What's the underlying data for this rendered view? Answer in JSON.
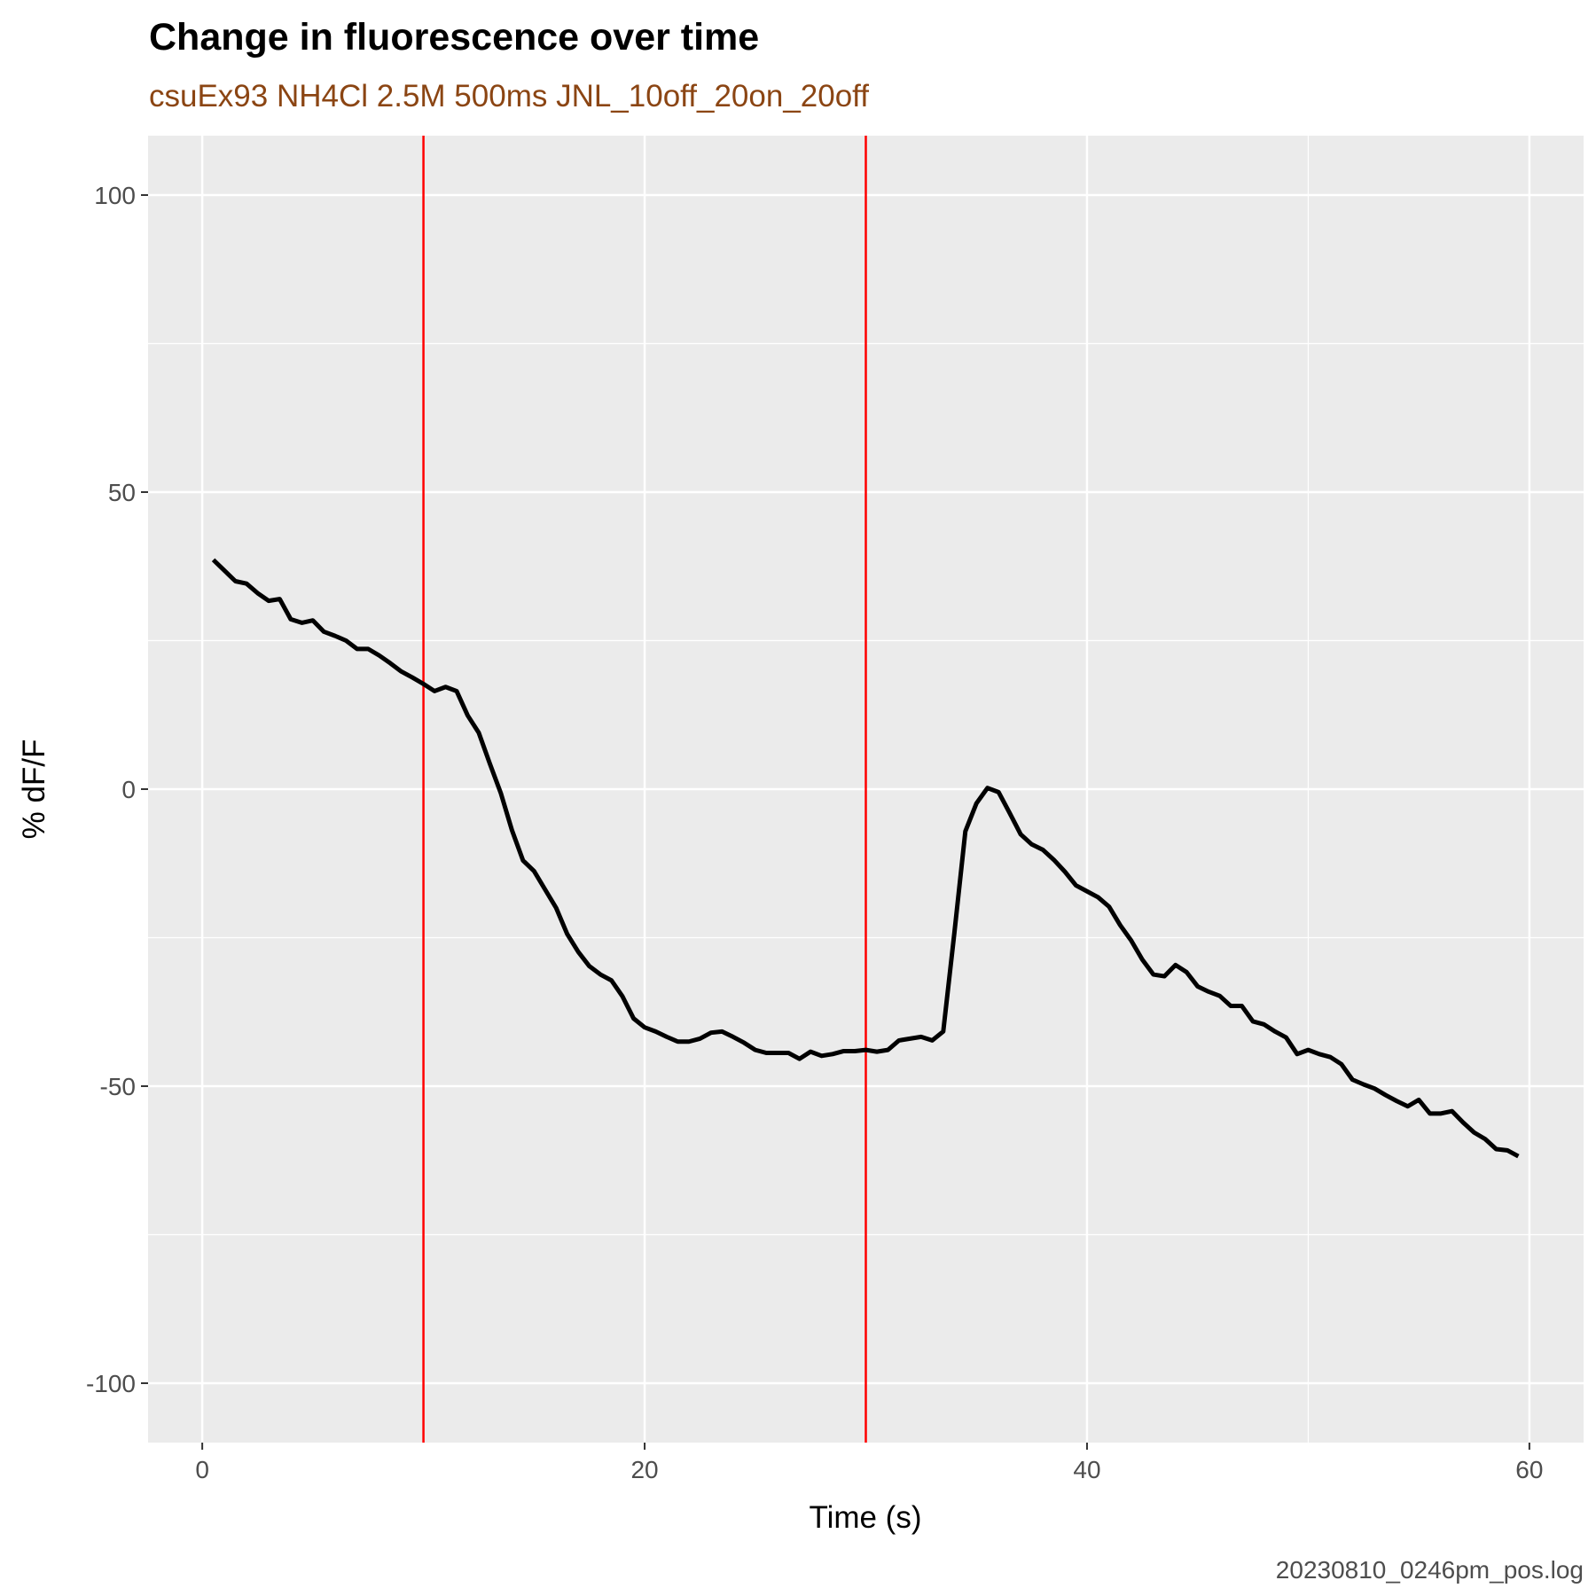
{
  "chart_data": {
    "type": "line",
    "title": "Change in fluorescence over time",
    "subtitle": "csuEx93 NH4Cl 2.5M 500ms JNL_10off_20on_20off",
    "x_label": "Time (s)",
    "y_label": "% dF/F",
    "caption": "20230810_0246pm_pos.log",
    "x": [
      0.5,
      1,
      1.5,
      2,
      2.5,
      3,
      3.5,
      4,
      4.5,
      5,
      5.5,
      6,
      6.5,
      7,
      7.5,
      8,
      8.5,
      9,
      9.5,
      10,
      10.5,
      11,
      11.5,
      12,
      12.5,
      13,
      13.5,
      14,
      14.5,
      15,
      15.5,
      16,
      16.5,
      17,
      17.5,
      18,
      18.5,
      19,
      19.5,
      20,
      20.5,
      21,
      21.5,
      22,
      22.5,
      23,
      23.5,
      24,
      24.5,
      25,
      25.5,
      26,
      26.5,
      27,
      27.5,
      28,
      28.5,
      29,
      29.5,
      30,
      30.5,
      31,
      31.5,
      32,
      32.5,
      33,
      33.5,
      34,
      34.5,
      35,
      35.5,
      36,
      36.5,
      37,
      37.5,
      38,
      38.5,
      39,
      39.5,
      40,
      40.5,
      41,
      41.5,
      42,
      42.5,
      43,
      43.5,
      44,
      44.5,
      45,
      45.5,
      46,
      46.5,
      47,
      47.5,
      48,
      48.5,
      49,
      49.5,
      50,
      50.5,
      51,
      51.5,
      52,
      52.5,
      53,
      53.5,
      54,
      54.5,
      55,
      55.5,
      56,
      56.5,
      57,
      57.5,
      58,
      58.5,
      59,
      59.5
    ],
    "series": [
      {
        "color": "#000000",
        "values": [
          38.6,
          36.8,
          35,
          34.6,
          33,
          31.7,
          32,
          28.6,
          28,
          28.4,
          26.5,
          25.8,
          25,
          23.6,
          23.6,
          22.5,
          21.2,
          19.8,
          18.8,
          17.7,
          16.5,
          17.2,
          16.5,
          12.4,
          9.5,
          4.3,
          -0.7,
          -6.9,
          -12,
          -13.8,
          -16.9,
          -20,
          -24.4,
          -27.4,
          -29.8,
          -31.2,
          -32.2,
          -34.9,
          -38.6,
          -40.1,
          -40.8,
          -41.7,
          -42.5,
          -42.5,
          -42,
          -41,
          -40.8,
          -41.7,
          -42.7,
          -43.9,
          -44.4,
          -44.4,
          -44.4,
          -45.4,
          -44.2,
          -44.9,
          -44.6,
          -44.1,
          -44.1,
          -43.9,
          -44.2,
          -43.9,
          -42.3,
          -42,
          -41.7,
          -42.3,
          -40.8,
          -24.3,
          -7.1,
          -2.4,
          0.2,
          -0.5,
          -4,
          -7.6,
          -9.3,
          -10.2,
          -11.9,
          -13.9,
          -16.2,
          -17.2,
          -18.2,
          -19.8,
          -22.9,
          -25.5,
          -28.7,
          -31.2,
          -31.5,
          -29.6,
          -30.8,
          -33.2,
          -34.1,
          -34.8,
          -36.5,
          -36.5,
          -39.1,
          -39.6,
          -40.8,
          -41.8,
          -44.6,
          -43.9,
          -44.6,
          -45.1,
          -46.3,
          -48.9,
          -49.7,
          -50.4,
          -51.5,
          -52.5,
          -53.4,
          -52.3,
          -54.6,
          -54.6,
          -54.2,
          -56.1,
          -57.8,
          -58.9,
          -60.6,
          -60.8,
          -61.8
        ]
      }
    ],
    "vlines": [
      10,
      30
    ],
    "vline_color": "#ff0000",
    "xlim": [
      -2.45,
      62.45
    ],
    "ylim": [
      -110,
      110
    ],
    "xticks": [
      0,
      20,
      40,
      60
    ],
    "yticks": [
      -100,
      -50,
      0,
      50,
      100
    ],
    "x_minor_breaks": [
      10,
      30,
      50
    ],
    "y_minor_breaks": [
      -75,
      -25,
      25,
      75
    ],
    "grid": true
  }
}
